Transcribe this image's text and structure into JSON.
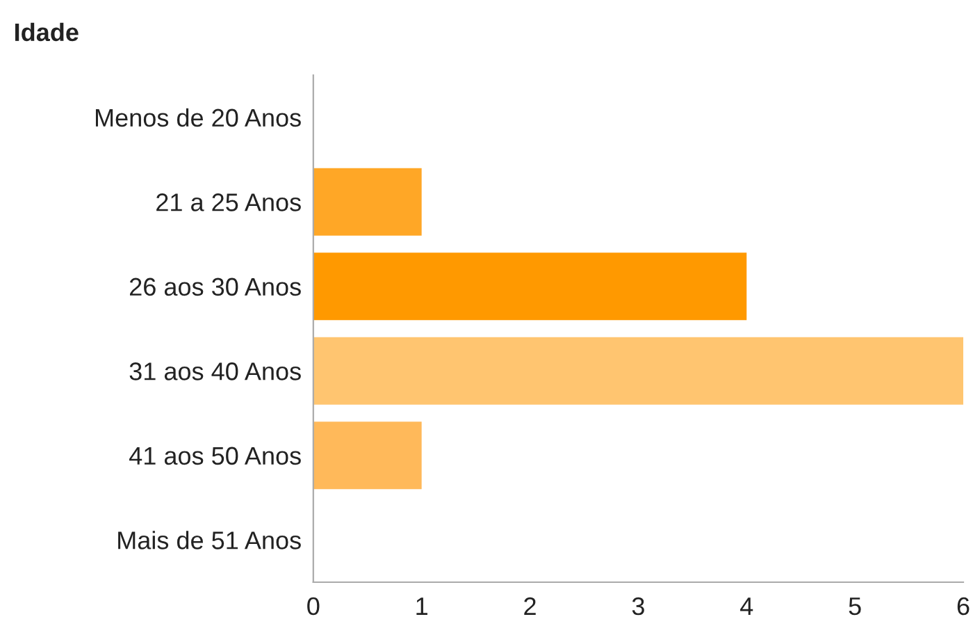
{
  "chart_data": {
    "type": "bar",
    "orientation": "horizontal",
    "title": "Idade",
    "categories": [
      "Menos de 20 Anos",
      "21 a 25 Anos",
      "26 aos 30 Anos",
      "31 aos 40 Anos",
      "41 aos 50 Anos",
      "Mais de 51 Anos"
    ],
    "values": [
      0,
      1,
      4,
      6,
      1,
      0
    ],
    "colors": [
      "#ffb74d",
      "#ffa726",
      "#ff9900",
      "#ffc570",
      "#ffb95a",
      "#ffb74d"
    ],
    "xlim": [
      0,
      6
    ],
    "xticks": [
      0,
      1,
      2,
      3,
      4,
      5,
      6
    ],
    "grid": false,
    "legend": false
  }
}
